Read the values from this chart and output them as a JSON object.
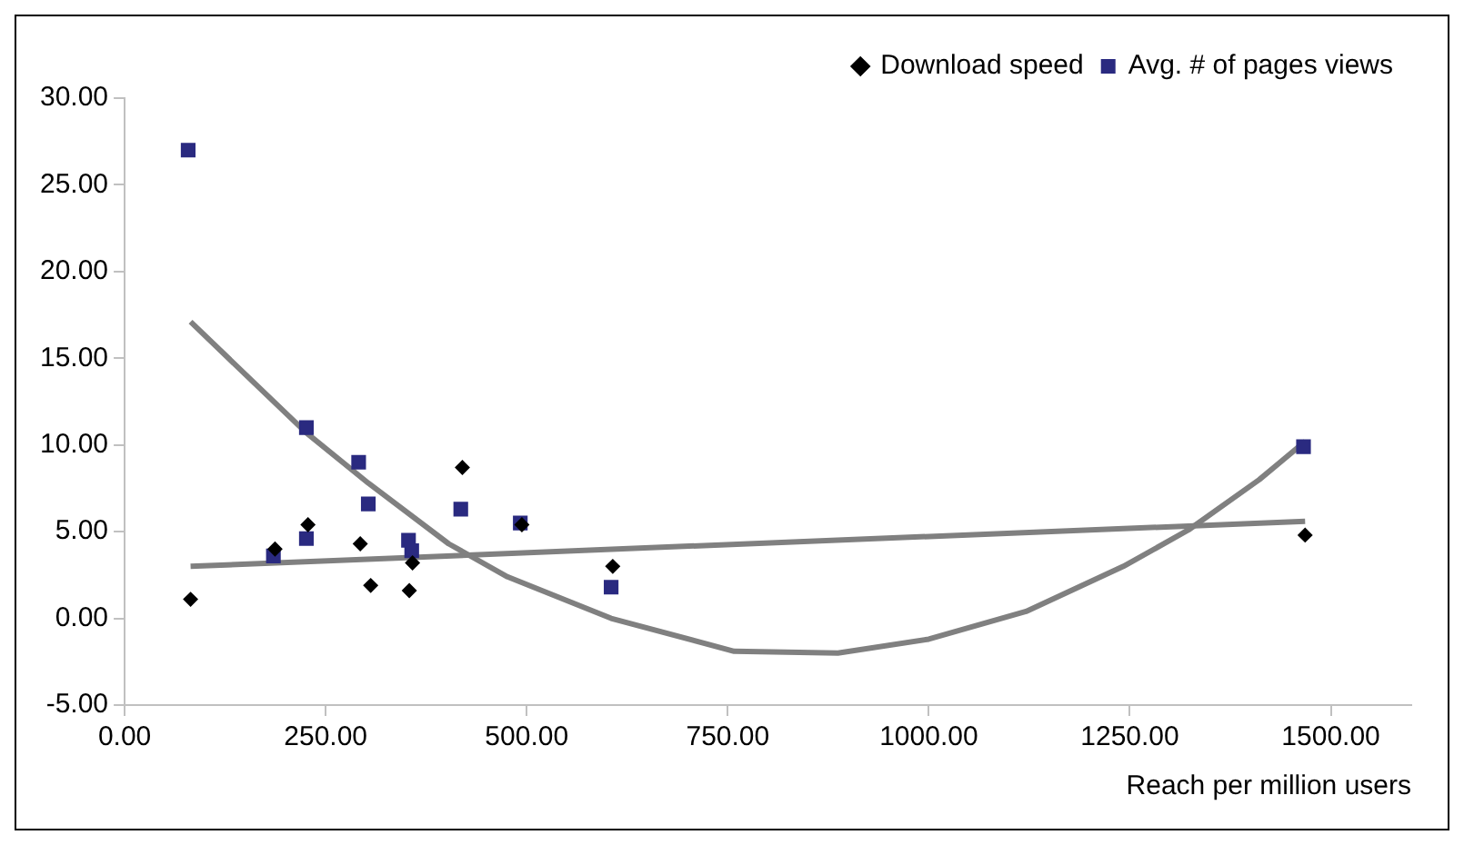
{
  "chart_data": {
    "type": "scatter",
    "xlabel": "Reach per million users",
    "xlim": [
      0,
      1600
    ],
    "ylim": [
      -5,
      30
    ],
    "xticks": [
      {
        "value": 0,
        "label": "0.00"
      },
      {
        "value": 250,
        "label": "250.00"
      },
      {
        "value": 500,
        "label": "500.00"
      },
      {
        "value": 750,
        "label": "750.00"
      },
      {
        "value": 1000,
        "label": "1000.00"
      },
      {
        "value": 1250,
        "label": "1250.00"
      },
      {
        "value": 1500,
        "label": "1500.00"
      }
    ],
    "yticks": [
      {
        "value": -5,
        "label": "-5.00"
      },
      {
        "value": 0,
        "label": "0.00"
      },
      {
        "value": 5,
        "label": "5.00"
      },
      {
        "value": 10,
        "label": "10.00"
      },
      {
        "value": 15,
        "label": "15.00"
      },
      {
        "value": 20,
        "label": "20.00"
      },
      {
        "value": 25,
        "label": "25.00"
      },
      {
        "value": 30,
        "label": "30.00"
      }
    ],
    "grid": false,
    "legend": "top right",
    "series": [
      {
        "name": "Download speed",
        "color": "#000000",
        "marker": "diamond",
        "x": [
          82,
          187,
          228,
          293,
          306,
          354,
          358,
          420,
          494,
          607,
          1468
        ],
        "values": [
          1.1,
          4.0,
          5.4,
          4.3,
          1.9,
          1.6,
          3.2,
          8.7,
          5.4,
          3.0,
          4.8
        ]
      },
      {
        "name": "Avg. # of pages views",
        "color": "#2a2a80",
        "marker": "square",
        "x": [
          79,
          185,
          226,
          226,
          291,
          303,
          353,
          357,
          418,
          492,
          605,
          1466
        ],
        "values": [
          27.0,
          3.6,
          4.6,
          11.0,
          9.0,
          6.6,
          4.5,
          3.9,
          6.3,
          5.5,
          1.8,
          9.9
        ]
      },
      {
        "type": "line",
        "color": "#808080",
        "marker": "none",
        "x": [
          82,
          1468
        ],
        "values": [
          3.0,
          5.6
        ]
      },
      {
        "type": "line",
        "color": "#808080",
        "marker": "none",
        "x": [
          82,
          226,
          303,
          403,
          476,
          605,
          758,
          887,
          1000,
          1121,
          1242,
          1323,
          1411,
          1468
        ],
        "values": [
          17.1,
          10.7,
          7.8,
          4.3,
          2.4,
          0.0,
          -1.9,
          -2.0,
          -1.2,
          0.4,
          3.0,
          5.1,
          8.0,
          10.2
        ]
      }
    ]
  }
}
